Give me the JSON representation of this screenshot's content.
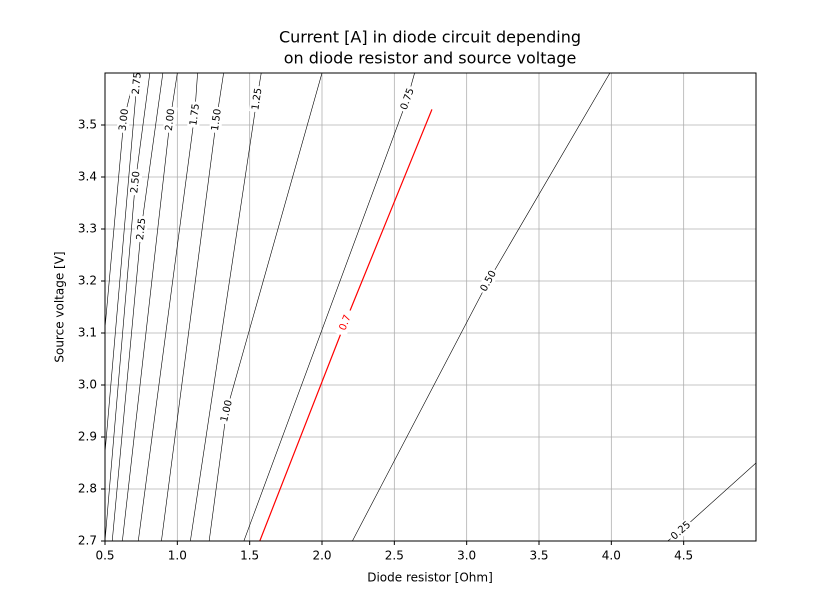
{
  "chart_data": {
    "type": "contour",
    "title_lines": [
      "Current [A] in diode circuit depending",
      "on diode resistor and source voltage"
    ],
    "x_label": "Diode resistor [Ohm]",
    "y_label": "Source voltage [V]",
    "xlim": [
      0.5,
      5.0
    ],
    "ylim": [
      2.7,
      3.6
    ],
    "xticks": [
      0.5,
      {
        "value": 1,
        "label": "1.0"
      },
      1.5,
      {
        "value": 2,
        "label": "2.0"
      },
      2.5,
      {
        "value": 3,
        "label": "3.0"
      },
      3.5,
      {
        "value": 4,
        "label": "4.0"
      },
      4.5
    ],
    "yticks": [
      2.7,
      2.8,
      2.9,
      {
        "value": 3,
        "label": "3.0"
      },
      3.1,
      3.2,
      3.3,
      3.4,
      3.5
    ],
    "grid": true,
    "contours": [
      {
        "level": {
          "value": 3,
          "label": "3.00"
        },
        "color": "#000000",
        "x": [
          0.5,
          0.63,
          0.71
        ],
        "y": [
          3.11,
          3.51,
          3.6
        ]
      },
      {
        "level": 2.75,
        "color": "#000000",
        "x": [
          0.5,
          0.72,
          0.74
        ],
        "y": [
          2.87,
          3.58,
          3.6
        ]
      },
      {
        "level": {
          "value": 2.5,
          "label": "2.50"
        },
        "color": "#000000",
        "x": [
          0.5,
          0.71,
          0.81
        ],
        "y": [
          2.7,
          3.39,
          3.6
        ]
      },
      {
        "level": 2.25,
        "color": "#000000",
        "x": [
          0.55,
          0.75,
          0.9
        ],
        "y": [
          2.7,
          3.3,
          3.6
        ]
      },
      {
        "level": {
          "value": 2,
          "label": "2.00"
        },
        "color": "#000000",
        "x": [
          0.62,
          0.95,
          1.0
        ],
        "y": [
          2.7,
          3.51,
          3.6
        ]
      },
      {
        "level": 1.75,
        "color": "#000000",
        "x": [
          0.73,
          1.12,
          1.14
        ],
        "y": [
          2.7,
          3.52,
          3.6
        ]
      },
      {
        "level": {
          "value": 1.5,
          "label": "1.50"
        },
        "color": "#000000",
        "x": [
          0.89,
          1.27,
          1.32
        ],
        "y": [
          2.7,
          3.51,
          3.6
        ]
      },
      {
        "level": 1.25,
        "color": "#000000",
        "x": [
          1.09,
          1.55,
          1.58
        ],
        "y": [
          2.7,
          3.55,
          3.6
        ]
      },
      {
        "level": {
          "value": 1,
          "label": "1.00"
        },
        "color": "#000000",
        "x": [
          1.22,
          1.34,
          2.0
        ],
        "y": [
          2.7,
          2.95,
          3.6
        ]
      },
      {
        "level": 0.75,
        "color": "#000000",
        "x": [
          1.46,
          2.59,
          2.64
        ],
        "y": [
          2.7,
          3.55,
          3.6
        ]
      },
      {
        "level": 0.7,
        "color": "#ff0000",
        "x": [
          1.57,
          2.16,
          2.76
        ],
        "y": [
          2.7,
          3.12,
          3.53
        ]
      },
      {
        "level": {
          "value": 0.5,
          "label": "0.50"
        },
        "color": "#000000",
        "x": [
          2.21,
          3.15,
          3.99
        ],
        "y": [
          2.7,
          3.2,
          3.6
        ]
      },
      {
        "level": 0.25,
        "color": "#000000",
        "x": [
          4.39,
          4.48,
          5.0
        ],
        "y": [
          2.7,
          2.72,
          2.85
        ]
      }
    ]
  }
}
